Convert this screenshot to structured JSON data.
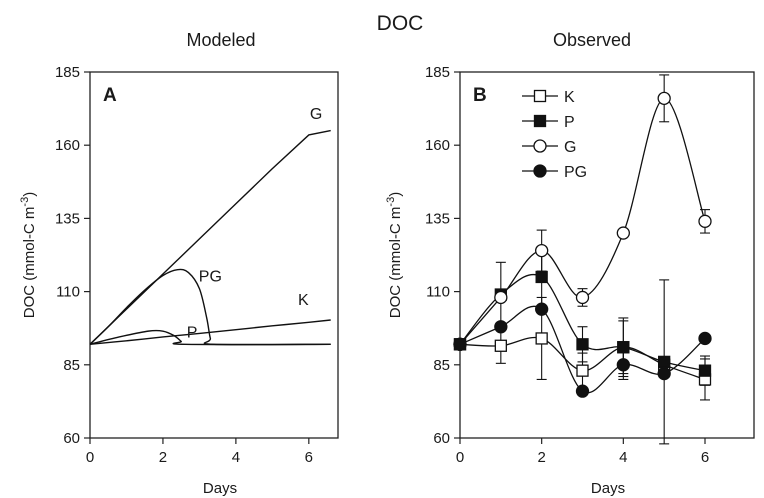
{
  "figure": {
    "title": "DOC"
  },
  "chart_data": [
    {
      "type": "line",
      "panel_label": "A",
      "subtitle": "Modeled",
      "xlabel": "Days",
      "ylabel": "DOC (mmol-C m⁻³)",
      "xlim": [
        0,
        6.8
      ],
      "ylim": [
        60,
        185
      ],
      "xticks": [
        "0",
        "2",
        "4",
        "6"
      ],
      "yticks": [
        "60",
        "85",
        "110",
        "135",
        "160",
        "185"
      ],
      "grid": false,
      "series": [
        {
          "name": "G",
          "x": [
            0,
            1,
            2,
            3,
            4,
            5,
            6,
            6.6
          ],
          "y": [
            92,
            104,
            116,
            128,
            140,
            152,
            163.5,
            165
          ]
        },
        {
          "name": "PG",
          "x": [
            0,
            0.5,
            1.0,
            1.5,
            2.0,
            2.4,
            2.7,
            3.0,
            3.2,
            3.3,
            3.4,
            6.6
          ],
          "y": [
            92,
            98,
            104.5,
            110.5,
            115.5,
            117.5,
            116.5,
            111,
            101,
            94,
            92,
            92
          ]
        },
        {
          "name": "K",
          "x": [
            0,
            1,
            2,
            3,
            4,
            5,
            6,
            6.6
          ],
          "y": [
            92,
            93.2,
            94.5,
            95.7,
            97,
            98.3,
            99.5,
            100.3
          ]
        },
        {
          "name": "P",
          "x": [
            0,
            0.8,
            1.6,
            2.0,
            2.3,
            2.5,
            2.6,
            6.6
          ],
          "y": [
            92,
            94.5,
            96.5,
            96.5,
            95,
            93,
            92,
            92
          ]
        }
      ],
      "curve_labels": [
        "G",
        "PG",
        "K",
        "P"
      ]
    },
    {
      "type": "line",
      "panel_label": "B",
      "subtitle": "Observed",
      "xlabel": "Days",
      "ylabel": "DOC (mmol-C m⁻³)",
      "xlim": [
        0,
        7.2
      ],
      "ylim": [
        60,
        185
      ],
      "xticks": [
        "0",
        "2",
        "4",
        "6"
      ],
      "yticks": [
        "60",
        "85",
        "110",
        "135",
        "160",
        "185"
      ],
      "grid": false,
      "legend_position": "top-left",
      "x": [
        0,
        1,
        2,
        3,
        4,
        5,
        6
      ],
      "series": [
        {
          "name": "K",
          "marker": "open-square",
          "y": [
            92,
            91.5,
            94,
            83,
            91,
            85,
            80
          ],
          "err": [
            0,
            6,
            14,
            6,
            9,
            0,
            7
          ]
        },
        {
          "name": "P",
          "marker": "filled-square",
          "y": [
            92,
            109,
            115,
            92,
            91,
            86,
            83
          ],
          "err": [
            0,
            11,
            10,
            6,
            10,
            28,
            5
          ]
        },
        {
          "name": "G",
          "marker": "open-circle",
          "y": [
            92,
            108,
            124,
            108,
            130,
            176,
            134
          ],
          "err": [
            0,
            0,
            7,
            3,
            0,
            8,
            4
          ]
        },
        {
          "name": "PG",
          "marker": "filled-circle",
          "y": [
            92,
            98,
            104,
            76,
            85,
            82,
            94
          ],
          "err": [
            0,
            0,
            0,
            0,
            5,
            0,
            0
          ]
        }
      ]
    }
  ]
}
